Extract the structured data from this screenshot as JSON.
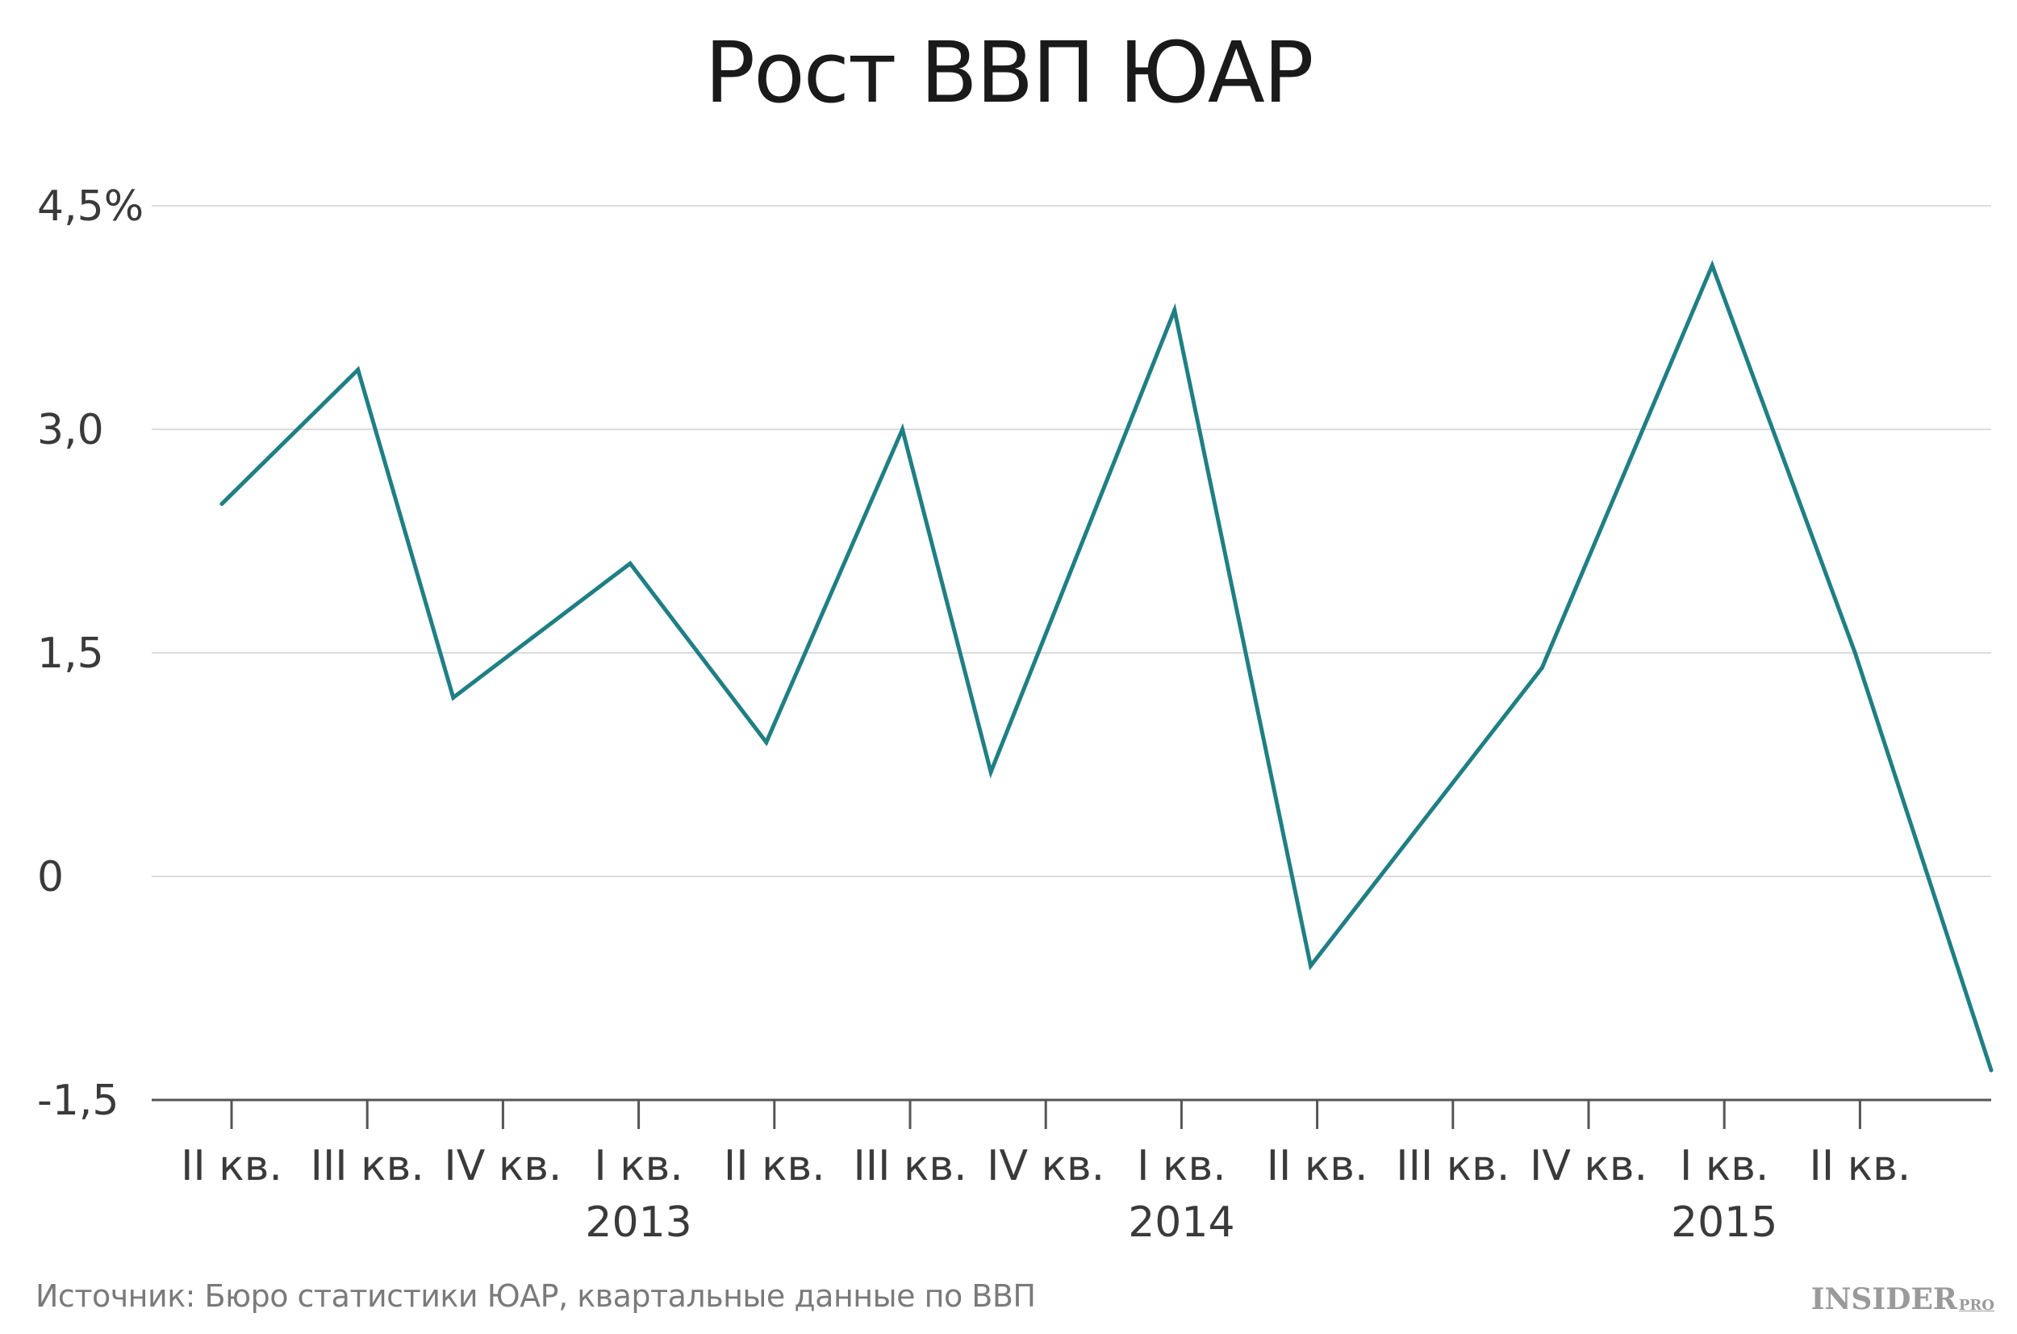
{
  "chart_data": {
    "type": "line",
    "title": "Рост ВВП ЮАР",
    "xlabel": "",
    "ylabel": "",
    "ylim": [
      -1.5,
      4.5
    ],
    "y_ticks": [
      "4,5%",
      "3,0",
      "1,5",
      "0",
      "-1,5"
    ],
    "y_tick_values": [
      4.5,
      3.0,
      1.5,
      0,
      -1.5
    ],
    "categories": [
      "II кв.",
      "III кв.",
      "IV кв.",
      "I кв.",
      "II кв.",
      "III кв.",
      "IV кв.",
      "I кв.",
      "II кв.",
      "III кв.",
      "IV кв.",
      "I кв.",
      "II кв."
    ],
    "year_labels": [
      {
        "label": "2013",
        "category_index": 3
      },
      {
        "label": "2014",
        "category_index": 7
      },
      {
        "label": "2015",
        "category_index": 11
      }
    ],
    "series": [
      {
        "color": "#1f7f84",
        "points": [
          {
            "x": 0.0,
            "y": 2.5
          },
          {
            "x": 1.0,
            "y": 3.4
          },
          {
            "x": 1.7,
            "y": 1.2
          },
          {
            "x": 3.0,
            "y": 2.1
          },
          {
            "x": 4.0,
            "y": 0.9
          },
          {
            "x": 5.0,
            "y": 3.0
          },
          {
            "x": 5.65,
            "y": 0.7
          },
          {
            "x": 7.0,
            "y": 3.8
          },
          {
            "x": 8.0,
            "y": -0.6
          },
          {
            "x": 9.7,
            "y": 1.4
          },
          {
            "x": 10.95,
            "y": 4.1
          },
          {
            "x": 12.0,
            "y": 1.5
          },
          {
            "x": 13.0,
            "y": -1.3
          }
        ]
      }
    ],
    "grid": true,
    "legend": "none"
  },
  "footer": {
    "source": "Источник: Бюро статистики ЮАР, квартальные данные по ВВП",
    "brand": "INSIDER",
    "brand_suffix": "PRO"
  }
}
